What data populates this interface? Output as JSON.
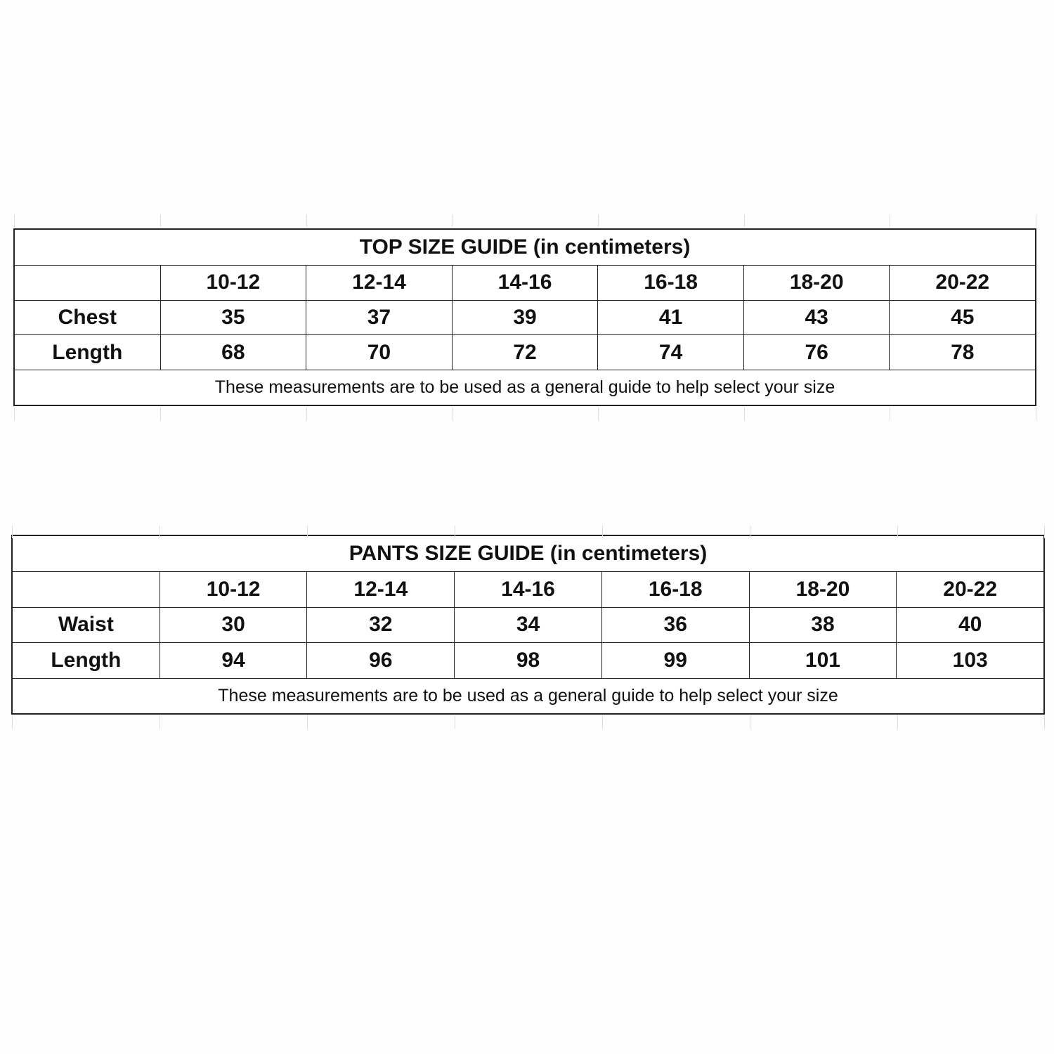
{
  "top_guide": {
    "title": "TOP SIZE GUIDE (in centimeters)",
    "sizes": [
      "10-12",
      "12-14",
      "14-16",
      "16-18",
      "18-20",
      "20-22"
    ],
    "rows": [
      {
        "label": "Chest",
        "values": [
          "35",
          "37",
          "39",
          "41",
          "43",
          "45"
        ]
      },
      {
        "label": "Length",
        "values": [
          "68",
          "70",
          "72",
          "74",
          "76",
          "78"
        ]
      }
    ],
    "note": "These measurements are to be used as a general guide to help select your size"
  },
  "pants_guide": {
    "title": "PANTS SIZE GUIDE (in centimeters)",
    "sizes": [
      "10-12",
      "12-14",
      "14-16",
      "16-18",
      "18-20",
      "20-22"
    ],
    "rows": [
      {
        "label": "Waist",
        "values": [
          "30",
          "32",
          "34",
          "36",
          "38",
          "40"
        ]
      },
      {
        "label": "Length",
        "values": [
          "94",
          "96",
          "98",
          "99",
          "101",
          "103"
        ]
      }
    ],
    "note": "These measurements are to be used as a general guide to help select your size"
  }
}
